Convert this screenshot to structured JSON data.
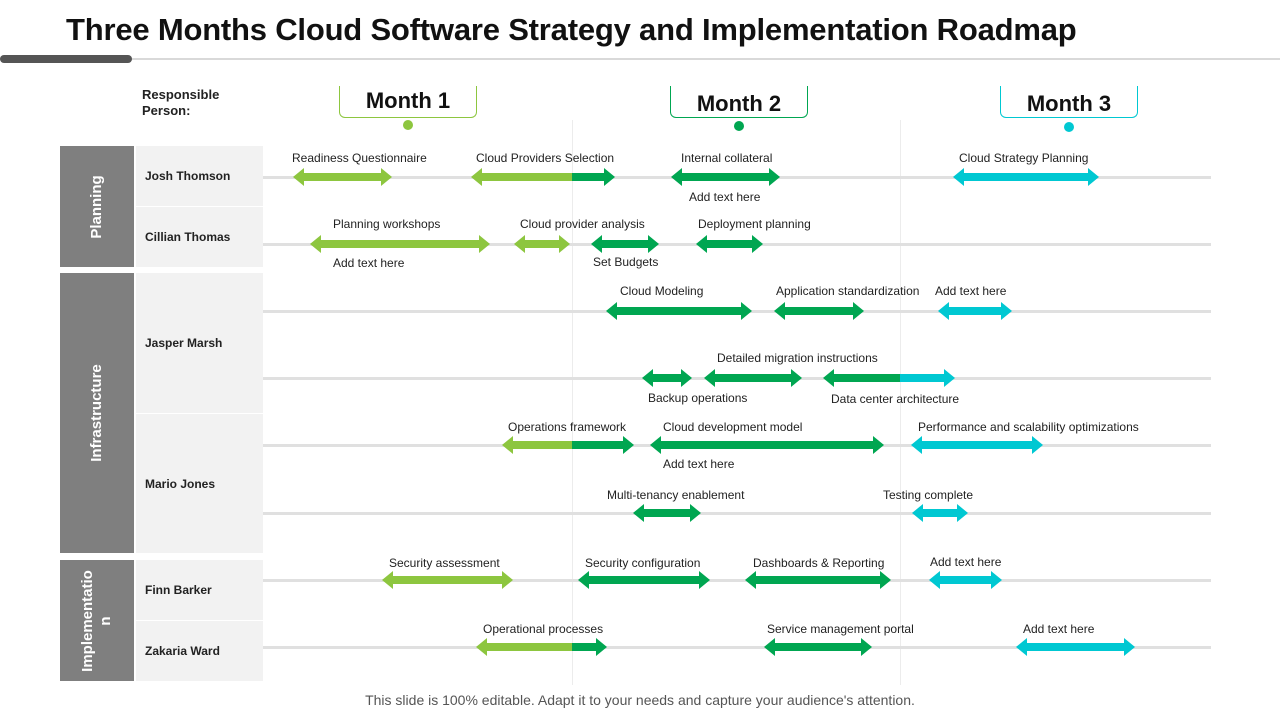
{
  "title": "Three Months Cloud Software Strategy and Implementation Roadmap",
  "responsible_label": "Responsible Person:",
  "months": [
    {
      "label": "Month 1",
      "color": "#8dc63f"
    },
    {
      "label": "Month 2",
      "color": "#00a651"
    },
    {
      "label": "Month 3",
      "color": "#00c8d2"
    }
  ],
  "categories": [
    {
      "label": "Planning"
    },
    {
      "label": "Infrastructure"
    },
    {
      "label": "Implementatio n"
    }
  ],
  "persons": [
    {
      "name": "Josh Thomson"
    },
    {
      "name": "Cillian Thomas"
    },
    {
      "name": "Jasper Marsh"
    },
    {
      "name": "Mario Jones"
    },
    {
      "name": "Finn  Barker"
    },
    {
      "name": "Zakaria Ward"
    }
  ],
  "tasks": [
    {
      "label": "Readiness Questionnaire"
    },
    {
      "label": "Cloud Providers Selection"
    },
    {
      "label": "Internal collateral"
    },
    {
      "label": "Add text here"
    },
    {
      "label": "Cloud Strategy Planning"
    },
    {
      "label": "Planning workshops"
    },
    {
      "label": "Add text here"
    },
    {
      "label": "Cloud provider analysis"
    },
    {
      "label": "Set Budgets"
    },
    {
      "label": "Deployment planning"
    },
    {
      "label": "Cloud Modeling"
    },
    {
      "label": "Application standardization"
    },
    {
      "label": "Add text here"
    },
    {
      "label": "Detailed migration instructions"
    },
    {
      "label": "Backup operations"
    },
    {
      "label": "Data center architecture"
    },
    {
      "label": "Operations framework"
    },
    {
      "label": "Cloud development model"
    },
    {
      "label": "Add text here"
    },
    {
      "label": "Performance and scalability optimizations"
    },
    {
      "label": "Multi-tenancy enablement"
    },
    {
      "label": "Testing complete"
    },
    {
      "label": "Security assessment"
    },
    {
      "label": "Security configuration"
    },
    {
      "label": "Dashboards & Reporting"
    },
    {
      "label": "Add text here"
    },
    {
      "label": "Operational processes"
    },
    {
      "label": "Service management portal"
    },
    {
      "label": "Add text here"
    }
  ],
  "footer": "This slide is 100% editable. Adapt it to your needs and capture your audience's attention."
}
